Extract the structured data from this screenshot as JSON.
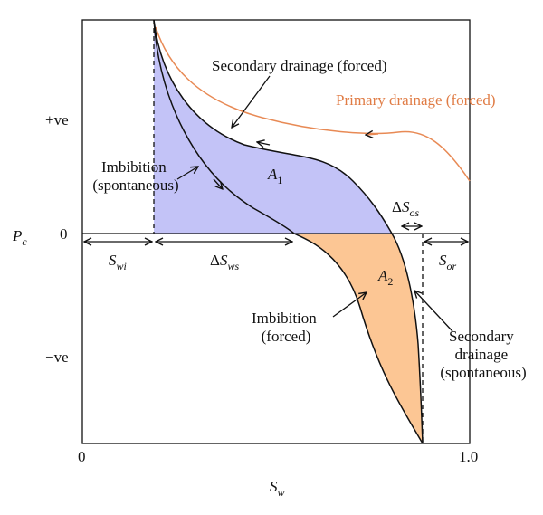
{
  "colors": {
    "primary_drainage": "#e88a55",
    "region_a1_fill": "#c3c3f7",
    "region_a2_fill": "#fcc694",
    "curve": "#111111",
    "axis": "#111111"
  },
  "axes": {
    "y_symbol": "P",
    "y_symbol_sub": "c",
    "y_pos": "+ve",
    "y_zero": "0",
    "y_neg": "−ve",
    "x_symbol": "S",
    "x_symbol_sub": "w",
    "x_zero": "0",
    "x_one": "1.0"
  },
  "curves": {
    "primary": "Primary drainage (forced)",
    "secondary_forced": "Secondary drainage (forced)",
    "imbibition_spont_1": "Imbibition",
    "imbibition_spont_2": "(spontaneous)",
    "imbibition_forced_1": "Imbibition",
    "imbibition_forced_2": "(forced)",
    "secondary_spont_1": "Secondary",
    "secondary_spont_2": "drainage",
    "secondary_spont_3": "(spontaneous)"
  },
  "regions": {
    "a1": "A",
    "a1_sub": "1",
    "a2": "A",
    "a2_sub": "2"
  },
  "intervals": {
    "swi": "S",
    "swi_sub": "wi",
    "dsws_delta": "Δ",
    "dsws": "S",
    "dsws_sub": "ws",
    "sor": "S",
    "sor_sub": "or",
    "dsos_delta": "Δ",
    "dsos": "S",
    "dsos_sub": "os"
  }
}
